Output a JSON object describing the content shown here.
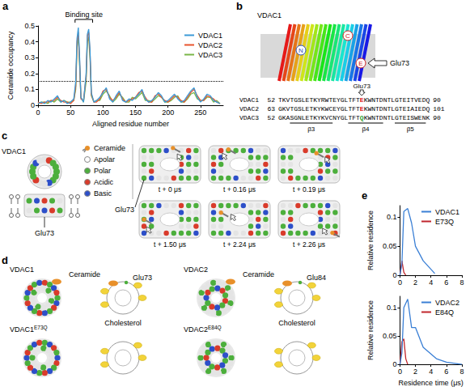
{
  "chart_data": [
    {
      "panel": "a",
      "type": "line",
      "x_label": "Aligned residue number",
      "y_label": "Ceramide occupancy",
      "x": [
        0,
        5,
        10,
        15,
        20,
        25,
        30,
        35,
        40,
        45,
        50,
        55,
        58,
        60,
        62,
        64,
        66,
        70,
        74,
        76,
        78,
        80,
        82,
        86,
        90,
        95,
        100,
        105,
        110,
        115,
        120,
        125,
        130,
        135,
        140,
        145,
        150,
        155,
        160,
        165,
        170,
        175,
        180,
        185,
        190,
        195,
        200,
        205,
        210,
        215,
        220,
        225,
        230,
        235,
        240,
        245,
        250,
        255,
        260,
        265,
        270,
        275,
        280
      ],
      "series": [
        {
          "name": "VDAC1",
          "color": "#3c9ad6",
          "values": [
            0.01,
            0.02,
            0.01,
            0.03,
            0.02,
            0.04,
            0.06,
            0.02,
            0.03,
            0.01,
            0.02,
            0.04,
            0.15,
            0.42,
            0.49,
            0.3,
            0.05,
            0.02,
            0.2,
            0.45,
            0.48,
            0.35,
            0.08,
            0.02,
            0.03,
            0.05,
            0.08,
            0.11,
            0.04,
            0.02,
            0.06,
            0.09,
            0.03,
            0.02,
            0.04,
            0.03,
            0.05,
            0.07,
            0.1,
            0.04,
            0.02,
            0.03,
            0.05,
            0.08,
            0.06,
            0.02,
            0.03,
            0.05,
            0.07,
            0.04,
            0.02,
            0.03,
            0.06,
            0.09,
            0.11,
            0.05,
            0.02,
            0.04,
            0.07,
            0.06,
            0.03,
            0.02,
            0.01
          ]
        },
        {
          "name": "VDAC2",
          "color": "#e8542e",
          "values": [
            0.02,
            0.01,
            0.02,
            0.02,
            0.03,
            0.03,
            0.05,
            0.03,
            0.02,
            0.02,
            0.01,
            0.03,
            0.12,
            0.4,
            0.46,
            0.28,
            0.04,
            0.03,
            0.18,
            0.44,
            0.46,
            0.33,
            0.07,
            0.02,
            0.02,
            0.04,
            0.09,
            0.1,
            0.05,
            0.03,
            0.05,
            0.08,
            0.04,
            0.02,
            0.03,
            0.04,
            0.05,
            0.08,
            0.09,
            0.05,
            0.02,
            0.02,
            0.06,
            0.07,
            0.05,
            0.03,
            0.02,
            0.04,
            0.06,
            0.05,
            0.03,
            0.02,
            0.05,
            0.08,
            0.1,
            0.06,
            0.03,
            0.03,
            0.06,
            0.05,
            0.04,
            0.02,
            0.01
          ]
        },
        {
          "name": "VDAC3",
          "color": "#7ab648",
          "values": [
            0.01,
            0.02,
            0.02,
            0.01,
            0.03,
            0.02,
            0.04,
            0.02,
            0.03,
            0.02,
            0.02,
            0.03,
            0.1,
            0.36,
            0.44,
            0.25,
            0.05,
            0.02,
            0.15,
            0.4,
            0.43,
            0.3,
            0.06,
            0.02,
            0.03,
            0.03,
            0.07,
            0.09,
            0.06,
            0.02,
            0.04,
            0.07,
            0.05,
            0.02,
            0.02,
            0.05,
            0.04,
            0.06,
            0.08,
            0.03,
            0.03,
            0.02,
            0.04,
            0.06,
            0.05,
            0.02,
            0.02,
            0.03,
            0.05,
            0.06,
            0.02,
            0.02,
            0.04,
            0.07,
            0.08,
            0.04,
            0.03,
            0.03,
            0.05,
            0.05,
            0.02,
            0.03,
            0.01
          ]
        }
      ],
      "xlim": [
        0,
        285
      ],
      "xticks": [
        0,
        50,
        100,
        150,
        200,
        250
      ],
      "ylim": [
        0,
        0.5
      ],
      "yticks": [
        0,
        0.1,
        0.2,
        0.3,
        0.4,
        0.5
      ],
      "threshold": 0.15,
      "annotations": [
        {
          "text": "Binding site",
          "x": [
            57,
            84
          ]
        }
      ],
      "legend": "top-right",
      "grid": false
    },
    {
      "panel": "e",
      "type": "line",
      "y_label": "Relative residence",
      "series": [
        {
          "name": "VDAC1",
          "color": "#3a7fd5",
          "x": [
            0,
            0.25,
            0.5,
            1,
            1.5,
            2,
            3,
            4.5
          ],
          "values": [
            0,
            0.02,
            0.11,
            0.115,
            0.09,
            0.05,
            0.025,
            0.003
          ]
        },
        {
          "name": "E73Q",
          "color": "#c0262d",
          "x": [
            0,
            0.25,
            0.5,
            0.75
          ],
          "values": [
            0,
            0.025,
            0.005,
            0
          ]
        }
      ],
      "xlim": [
        0,
        8
      ],
      "xticks": [
        0,
        2,
        4,
        6,
        8
      ],
      "ylim": [
        0,
        0.12
      ],
      "yticks": [
        0,
        0.05,
        0.1
      ],
      "legend": "top-right",
      "grid": false
    },
    {
      "type": "line",
      "x_label": "Residence time (μs)",
      "y_label": "Relative residence",
      "series": [
        {
          "name": "VDAC2",
          "color": "#3a7fd5",
          "x": [
            0,
            0.25,
            0.5,
            1,
            1.5,
            2,
            3,
            4.7,
            6,
            8
          ],
          "values": [
            0,
            0.02,
            0.1,
            0.115,
            0.065,
            0.065,
            0.03,
            0.01,
            0.004,
            0
          ]
        },
        {
          "name": "E84Q",
          "color": "#c0262d",
          "x": [
            0,
            0.25,
            0.5,
            0.75,
            1
          ],
          "values": [
            0,
            0.04,
            0.045,
            0.01,
            0
          ]
        }
      ],
      "xlim": [
        0,
        8
      ],
      "xticks": [
        0,
        2,
        4,
        6,
        8
      ],
      "ylim": [
        0,
        0.12
      ],
      "yticks": [
        0,
        0.05,
        0.1
      ],
      "legend": "top-right",
      "grid": false
    }
  ],
  "diagrams": [
    {
      "panel": "b",
      "structure": {
        "title": "VDAC1",
        "n_terminus": "N",
        "c_terminus": "C",
        "residue": "E",
        "residue_label": "Glu73"
      },
      "alignment": {
        "marker_label": "Glu73",
        "rows": [
          {
            "name": "VDAC1",
            "start": 52,
            "before": "TKVTGSLETKYRWTEYGLTFT",
            "mark": "E",
            "after": "KWNTDNTLGTEITVEDQ",
            "end": 90,
            "mark_color": "#e02020"
          },
          {
            "name": "VDAC2",
            "start": 63,
            "before": "GKVTGSLETKYKWCEYGLTFT",
            "mark": "E",
            "after": "KWNTDNTLGTEIAIEDQ",
            "end": 101,
            "mark_color": "#e02020"
          },
          {
            "name": "VDAC3",
            "start": 52,
            "before": "GKASGNLETKYKVCNYGLTFT",
            "mark": "Q",
            "after": "KWNTDNTLGTEISWENK",
            "end": 90,
            "mark_color": "#2ea02e"
          }
        ],
        "strands": [
          "β3",
          "β4",
          "β5"
        ]
      }
    },
    {
      "panel": "c",
      "protein": "VDAC1",
      "side_label": "Glu73",
      "snapshot_label": "Glu73",
      "key": [
        {
          "label": "Ceramide",
          "color": "#e8902a"
        },
        {
          "label": "Apolar",
          "color": "#ffffff"
        },
        {
          "label": "Polar",
          "color": "#4caf3c"
        },
        {
          "label": "Acidic",
          "color": "#d93b2b"
        },
        {
          "label": "Basic",
          "color": "#2d4fc9"
        }
      ],
      "snapshots": [
        "t + 0 μs",
        "t + 0.16 μs",
        "t + 0.19 μs",
        "t + 1.50 μs",
        "t + 2.24 μs",
        "t + 2.26 μs"
      ]
    },
    {
      "panel": "d",
      "groups": [
        {
          "name": "VDAC1",
          "ligand": "Ceramide",
          "residue": "Glu73",
          "sterol": "Cholesterol"
        },
        {
          "name": "VDAC2",
          "ligand": "Ceramide",
          "residue": "Glu84",
          "sterol": "Cholesterol"
        },
        {
          "name": "VDAC1",
          "superscript": "E73Q"
        },
        {
          "name": "VDAC2",
          "superscript": "E84Q"
        }
      ]
    }
  ]
}
